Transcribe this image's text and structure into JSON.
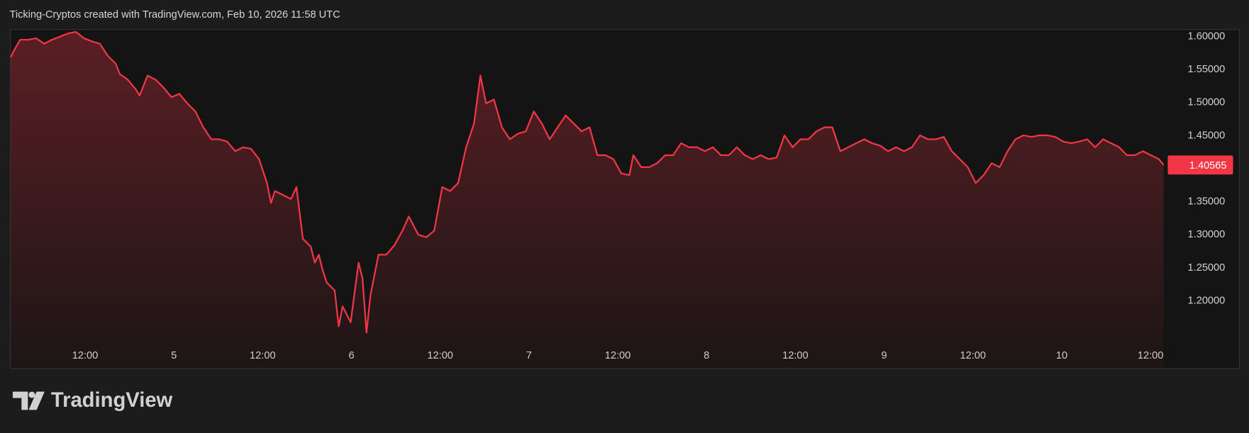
{
  "header": "Ticking-Cryptos created with TradingView.com, Feb 10, 2026 11:58 UTC",
  "brand": "TradingView",
  "chart_data": {
    "type": "area",
    "color": "#f23645",
    "x": [
      1.94,
      2.48,
      3.23,
      4.3,
      5.38,
      6.46,
      7.53,
      8.61,
      9.69,
      10.76,
      11.84,
      12.91,
      13.99,
      15.07,
      16.14,
      16.68,
      17.76,
      18.83,
      19.37,
      20.45,
      21.52,
      22.6,
      23.68,
      24.75,
      25.83,
      26.91,
      27.98,
      29.06,
      30.13,
      31.21,
      32.29,
      33.36,
      34.44,
      35.51,
      36.59,
      37.13,
      37.67,
      38.74,
      39.82,
      40.57,
      41.43,
      42.51,
      43.05,
      43.59,
      44.12,
      44.66,
      45.74,
      46.28,
      46.81,
      47.35,
      47.89,
      48.97,
      49.5,
      50.04,
      50.58,
      51.12,
      51.66,
      52.73,
      53.81,
      54.89,
      55.75,
      57.04,
      58.11,
      59.19,
      60.27,
      61.34,
      62.42,
      63.5,
      64.57,
      65.43,
      66.19,
      67.26,
      68.34,
      69.41,
      70.49,
      71.57,
      72.64,
      73.72,
      74.8,
      75.87,
      76.95,
      78.02,
      79.1,
      80.18,
      81.25,
      82.33,
      83.41,
      84.48,
      85.56,
      86.1,
      87.17,
      88.25,
      89.32,
      90.4,
      91.48,
      92.55,
      93.63,
      94.71,
      95.78,
      96.86,
      97.93,
      99.01,
      100.09,
      101.16,
      102.24,
      103.32,
      104.39,
      105.47,
      106.54,
      107.62,
      108.7,
      109.77,
      110.85,
      111.93,
      113.0,
      114.08,
      115.15,
      116.23,
      117.31,
      118.38,
      119.46,
      120.53,
      121.61,
      122.69,
      123.76,
      124.84,
      125.92,
      126.99,
      128.07,
      129.14,
      130.22,
      131.3,
      132.37,
      133.45,
      134.53,
      135.6,
      136.68,
      137.75,
      138.83,
      139.91,
      140.98,
      142.06,
      143.14,
      144.21,
      145.29,
      146.36,
      147.44,
      148.52,
      149.59,
      150.67,
      151.75,
      152.82,
      153.9,
      154.97,
      156.05,
      157.13,
      157.77
    ],
    "values": [
      1.5687,
      1.5807,
      1.5952,
      1.5952,
      1.5976,
      1.5892,
      1.5952,
      1.6,
      1.6048,
      1.6072,
      1.5976,
      1.5928,
      1.5892,
      1.5711,
      1.559,
      1.5434,
      1.5349,
      1.5205,
      1.5108,
      1.541,
      1.5349,
      1.5229,
      1.5084,
      1.5133,
      1.4988,
      1.4867,
      1.4627,
      1.4446,
      1.4446,
      1.441,
      1.4265,
      1.4325,
      1.4301,
      1.4145,
      1.3783,
      1.3482,
      1.3663,
      1.3602,
      1.3542,
      1.3723,
      1.294,
      1.2819,
      1.2578,
      1.2699,
      1.2458,
      1.2277,
      1.2157,
      1.1614,
      1.1916,
      1.1795,
      1.1675,
      1.2578,
      1.2337,
      1.1518,
      1.2096,
      1.2398,
      1.2699,
      1.2699,
      1.2843,
      1.306,
      1.3277,
      1.3,
      1.2964,
      1.306,
      1.3723,
      1.3663,
      1.3783,
      1.4325,
      1.4687,
      1.541,
      1.4988,
      1.5048,
      1.4627,
      1.4446,
      1.453,
      1.4566,
      1.4867,
      1.4687,
      1.4446,
      1.4627,
      1.4807,
      1.4687,
      1.4566,
      1.4627,
      1.4205,
      1.4205,
      1.4145,
      1.3928,
      1.3904,
      1.4205,
      1.4024,
      1.4024,
      1.4084,
      1.4205,
      1.4205,
      1.4386,
      1.4325,
      1.4325,
      1.4265,
      1.4325,
      1.4205,
      1.4205,
      1.4325,
      1.4205,
      1.4145,
      1.4205,
      1.4145,
      1.4169,
      1.4506,
      1.4325,
      1.4446,
      1.4446,
      1.4566,
      1.4627,
      1.4627,
      1.4265,
      1.4325,
      1.4386,
      1.4446,
      1.4386,
      1.4349,
      1.4265,
      1.4325,
      1.4265,
      1.4325,
      1.4506,
      1.4446,
      1.4446,
      1.4482,
      1.4265,
      1.4145,
      1.4024,
      1.3783,
      1.3904,
      1.4084,
      1.4024,
      1.4265,
      1.4446,
      1.4506,
      1.4482,
      1.4506,
      1.4506,
      1.4482,
      1.441,
      1.4386,
      1.441,
      1.4446,
      1.4325,
      1.4446,
      1.4386,
      1.4325,
      1.4205,
      1.4205,
      1.4265,
      1.4205,
      1.4145,
      1.40565
    ],
    "last_value_label": "1.40565",
    "xlim": [
      1.9,
      157.9
    ],
    "xticks": [
      {
        "value": 12,
        "label": "12:00"
      },
      {
        "value": 24,
        "label": "5"
      },
      {
        "value": 36,
        "label": "12:00"
      },
      {
        "value": 48,
        "label": "6"
      },
      {
        "value": 60,
        "label": "12:00"
      },
      {
        "value": 72,
        "label": "7"
      },
      {
        "value": 84,
        "label": "12:00"
      },
      {
        "value": 96,
        "label": "8"
      },
      {
        "value": 108,
        "label": "12:00"
      },
      {
        "value": 120,
        "label": "9"
      },
      {
        "value": 132,
        "label": "12:00"
      },
      {
        "value": 144,
        "label": "10"
      },
      {
        "value": 156,
        "label": "12:00"
      }
    ],
    "ylim": [
      1.0976,
      1.6108
    ],
    "yticks": [
      {
        "value": 1.2,
        "label": "1.20000"
      },
      {
        "value": 1.25,
        "label": "1.25000"
      },
      {
        "value": 1.3,
        "label": "1.30000"
      },
      {
        "value": 1.35,
        "label": "1.35000"
      },
      {
        "value": 1.4,
        "label": "1.40000"
      },
      {
        "value": 1.45,
        "label": "1.45000"
      },
      {
        "value": 1.5,
        "label": "1.50000"
      },
      {
        "value": 1.55,
        "label": "1.55000"
      },
      {
        "value": 1.6,
        "label": "1.60000"
      }
    ],
    "grid": false
  }
}
